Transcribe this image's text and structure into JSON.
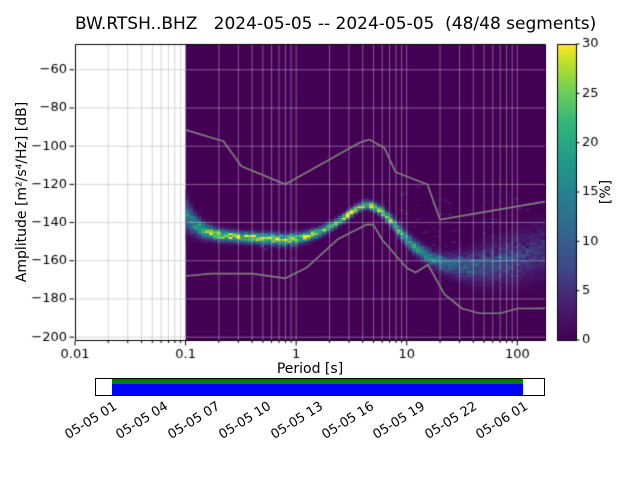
{
  "chart_data": {
    "type": "heatmap",
    "variant": "probabilistic-power-spectral-density",
    "title": "BW.RTSH..BHZ   2024-05-05 -- 2024-05-05  (48/48 segments)",
    "station": "BW.RTSH..BHZ",
    "date_range": "2024-05-05 -- 2024-05-05",
    "segments": "48/48",
    "xlabel": "Period [s]",
    "ylabel": "Amplitude [m²/s⁴/Hz] [dB]",
    "x_scale": "log",
    "xlim": [
      0.01,
      178
    ],
    "ylim": [
      -201.5,
      -46.5
    ],
    "x_ticks": [
      0.01,
      0.1,
      1,
      10,
      100
    ],
    "y_ticks": [
      -200,
      -180,
      -160,
      -140,
      -120,
      -100,
      -80,
      -60
    ],
    "grid": true,
    "data_period_range": [
      0.1,
      178
    ],
    "colormap": "viridis",
    "zero_percent_color": "#440154",
    "colorbar": {
      "label": "[%]",
      "min": 0,
      "max": 30,
      "ticks": [
        0,
        5,
        10,
        15,
        20,
        25,
        30
      ]
    },
    "psd_mode": {
      "periods": [
        0.1,
        0.12,
        0.15,
        0.2,
        0.3,
        0.45,
        0.6,
        0.8,
        1.0,
        1.3,
        1.7,
        2.2,
        2.8,
        3.5,
        4.2,
        5.0,
        6.0,
        7.5,
        9.0,
        11,
        14,
        18,
        22,
        28,
        36,
        46,
        60,
        80,
        105,
        140,
        178
      ],
      "db": [
        -135,
        -141,
        -144.5,
        -146.5,
        -147.5,
        -148,
        -148.5,
        -149,
        -148.5,
        -147,
        -144.5,
        -141,
        -137,
        -132.5,
        -130.5,
        -131.5,
        -134.5,
        -140,
        -146,
        -151,
        -156,
        -159.5,
        -161.5,
        -162.5,
        -163,
        -162.5,
        -161.5,
        -160,
        -158,
        -156,
        -154
      ],
      "peak_percent": [
        14,
        18,
        24,
        27,
        28,
        28,
        27,
        26,
        26,
        26,
        27,
        28,
        29,
        30,
        30,
        29,
        27,
        24,
        21,
        19,
        17,
        15,
        13,
        11,
        10,
        9,
        8,
        8,
        7,
        6,
        6
      ],
      "sigma_db": [
        5.5,
        3.5,
        2.5,
        2,
        1.8,
        1.8,
        2,
        2,
        2,
        1.8,
        1.6,
        1.5,
        1.4,
        1.4,
        1.4,
        1.5,
        1.7,
        2,
        2.2,
        2.4,
        2.6,
        2.8,
        3.2,
        4,
        5,
        6,
        7,
        8,
        8.5,
        9,
        9
      ]
    },
    "noise_models": {
      "color": "#7f7f7f",
      "nhnm": {
        "periods": [
          0.1,
          0.22,
          0.32,
          0.8,
          3.8,
          4.6,
          6.3,
          7.9,
          15.4,
          20.0,
          178.0
        ],
        "db": [
          -91.5,
          -97.4,
          -110.5,
          -120.0,
          -98.0,
          -96.5,
          -101.0,
          -113.5,
          -120.1,
          -138.5,
          -129.0
        ]
      },
      "nlnm": {
        "periods": [
          0.1,
          0.17,
          0.4,
          0.8,
          1.24,
          2.4,
          4.3,
          5.0,
          6.0,
          10.0,
          12.0,
          15.6,
          21.9,
          31.6,
          45.0,
          70.0,
          101.0,
          178.0
        ],
        "db": [
          -168.0,
          -166.7,
          -166.7,
          -169.2,
          -163.7,
          -148.6,
          -141.1,
          -141.1,
          -149.0,
          -163.8,
          -166.2,
          -162.1,
          -177.5,
          -185.0,
          -187.5,
          -187.5,
          -185.0,
          -184.9
        ]
      }
    }
  },
  "timeline": {
    "tick_labels": [
      "05-05 01",
      "05-05 04",
      "05-05 07",
      "05-05 10",
      "05-05 13",
      "05-05 16",
      "05-05 19",
      "05-05 22",
      "05-06 01"
    ],
    "data_color": "#0000ff",
    "top_strip_color": "#008000"
  }
}
